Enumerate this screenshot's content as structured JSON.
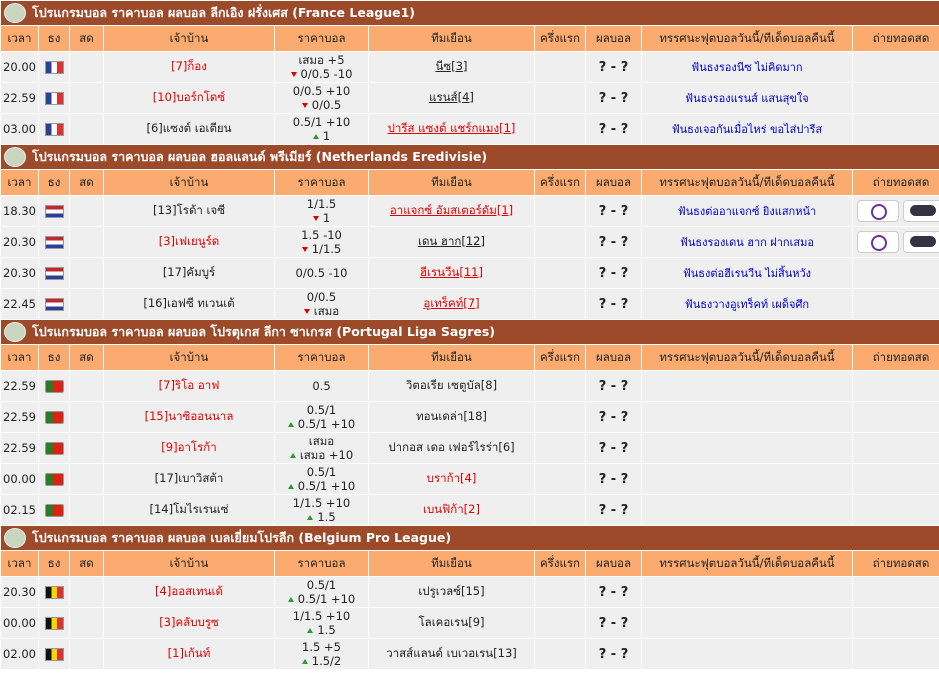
{
  "columns": [
    "เวลา",
    "ธง",
    "สด",
    "เจ้าบ้าน",
    "ราคาบอล",
    "ทีมเยือน",
    "ครึ่งแรก",
    "ผลบอล",
    "ทรรศนะฟุตบอลวันนี้/ทีเด็ดบอลคืนนี้",
    "ถ่ายทอดสด"
  ],
  "leagues": [
    {
      "title": "โปรแกรมบอล ราคาบอล ผลบอล ลีกเอิง ฝรั่งเศส (France League1)",
      "flag": "fr",
      "links": true,
      "rows": [
        {
          "time": "20.00",
          "home": "[7]ก็อง",
          "odds": {
            "line1": "เสมอ +5",
            "line2": "0/0.5 -10",
            "arrow": "down"
          },
          "away": "นีซ[3]",
          "fav": "home",
          "result": "? - ?",
          "tip": "ฟันธงรองนีซ ไม่คิดมาก"
        },
        {
          "time": "22.59",
          "home": "[10]บอร์กโดซ์",
          "odds": {
            "line1": "0/0.5 +10",
            "line2": "0/0.5",
            "arrow": "down"
          },
          "away": "แรนส์[4]",
          "fav": "home",
          "result": "? - ?",
          "tip": "ฟันธงรองแรนส์ แสนสุขใจ"
        },
        {
          "time": "03.00",
          "home": "[6]แซงต์ เอเตียน",
          "odds": {
            "line1": "0.5/1 +10",
            "line2": "1",
            "arrow": "up"
          },
          "away": "ปารีส แซงต์ แชร์กแมง[1]",
          "fav": "away",
          "result": "? - ?",
          "tip": "ฟันธงเจอกันเมื่อไหร่ ขอไส่ปารีส"
        }
      ]
    },
    {
      "title": "โปรแกรมบอล ราคาบอล ผลบอล ฮอลแลนด์ พรีเมียร์ (Netherlands Eredivisie)",
      "flag": "nl",
      "links": true,
      "rows": [
        {
          "time": "18.30",
          "home": "[13]โรด้า เจซี",
          "odds": {
            "line1": "1/1.5",
            "line2": "1",
            "arrow": "down"
          },
          "away": "อาแจกซ์ อัมสเตอร์ดัม[1]",
          "fav": "away",
          "result": "? - ?",
          "tip": "ฟันธงต่ออาแจกซ์ ยิงแสกหน้า",
          "tv": true
        },
        {
          "time": "20.30",
          "home": "[3]เฟเยนูร์ด",
          "odds": {
            "line1": "1.5 -10",
            "line2": "1/1.5",
            "arrow": "down"
          },
          "away": "เดน ฮาก[12]",
          "fav": "home",
          "result": "? - ?",
          "tip": "ฟันธงรองเดน ฮาก ฝากเสมอ",
          "tv": true
        },
        {
          "time": "20.30",
          "home": "[17]คัมบูร์",
          "odds": {
            "line1": "0/0.5 -10"
          },
          "away": "ฮีเรนวีน[11]",
          "fav": "away",
          "result": "? - ?",
          "tip": "ฟันธงต่อฮีเรนวีน ไม่สิ้นหวัง"
        },
        {
          "time": "22.45",
          "home": "[16]เอฟซี ทเวนเต้",
          "odds": {
            "line1": "0/0.5",
            "line2": "เสมอ",
            "arrow": "down"
          },
          "away": "อูเทร็คท์[7]",
          "fav": "away",
          "result": "? - ?",
          "tip": "ฟันธงวางอูเทร็คท์ เผด็จศึก"
        }
      ]
    },
    {
      "title": "โปรแกรมบอล ราคาบอล ผลบอล โปรตุเกส ลีกา ซาเกรส (Portugal Liga Sagres)",
      "flag": "pt",
      "links": false,
      "rows": [
        {
          "time": "22.59",
          "home": "[7]ริโอ อาฟ",
          "odds": {
            "line1": "0.5"
          },
          "away": "วิตอเรีย เซตูบัล[8]",
          "fav": "home",
          "result": "? - ?"
        },
        {
          "time": "22.59",
          "home": "[15]นาซิออนนาล",
          "odds": {
            "line1": "0.5/1",
            "line2": "0.5/1 +10",
            "arrow": "up"
          },
          "away": "ทอนเดล่า[18]",
          "fav": "home",
          "result": "? - ?"
        },
        {
          "time": "22.59",
          "home": "[9]อาโรก้า",
          "odds": {
            "line1": "เสมอ",
            "line2": "เสมอ +10",
            "arrow": "up"
          },
          "away": "ปากอส เดอ เฟอร์ไรร่า[6]",
          "fav": "home",
          "result": "? - ?"
        },
        {
          "time": "00.00",
          "home": "[17]เบาวิสต้า",
          "odds": {
            "line1": "0.5/1",
            "line2": "0.5/1 +10",
            "arrow": "up"
          },
          "away": "บราก้า[4]",
          "fav": "away",
          "result": "? - ?"
        },
        {
          "time": "02.15",
          "home": "[14]โมไรเรนเซ่",
          "odds": {
            "line1": "1/1.5 +10",
            "line2": "1.5",
            "arrow": "up"
          },
          "away": "เบนฟิก้า[2]",
          "fav": "away",
          "result": "? - ?"
        }
      ]
    },
    {
      "title": "โปรแกรมบอล ราคาบอล ผลบอล เบลเยี่ยมโปรลีก (Belgium Pro League)",
      "flag": "be",
      "links": false,
      "rows": [
        {
          "time": "20.30",
          "home": "[4]ออสเทนเด้",
          "odds": {
            "line1": "0.5/1",
            "line2": "0.5/1 +10",
            "arrow": "up"
          },
          "away": "เปรูเวลซ์[15]",
          "fav": "home",
          "result": "? - ?"
        },
        {
          "time": "00.00",
          "home": "[3]คลับบรูซ",
          "odds": {
            "line1": "1/1.5 +10",
            "line2": "1.5",
            "arrow": "up"
          },
          "away": "โลเคอเรน[9]",
          "fav": "home",
          "result": "? - ?"
        },
        {
          "time": "02.00",
          "home": "[1]เก้นท์",
          "odds": {
            "line1": "1.5 +5",
            "line2": "1.5/2",
            "arrow": "up"
          },
          "away": "วาสส์แลนด์ เบเวอเรน[13]",
          "fav": "home",
          "result": "? - ?"
        }
      ]
    }
  ]
}
